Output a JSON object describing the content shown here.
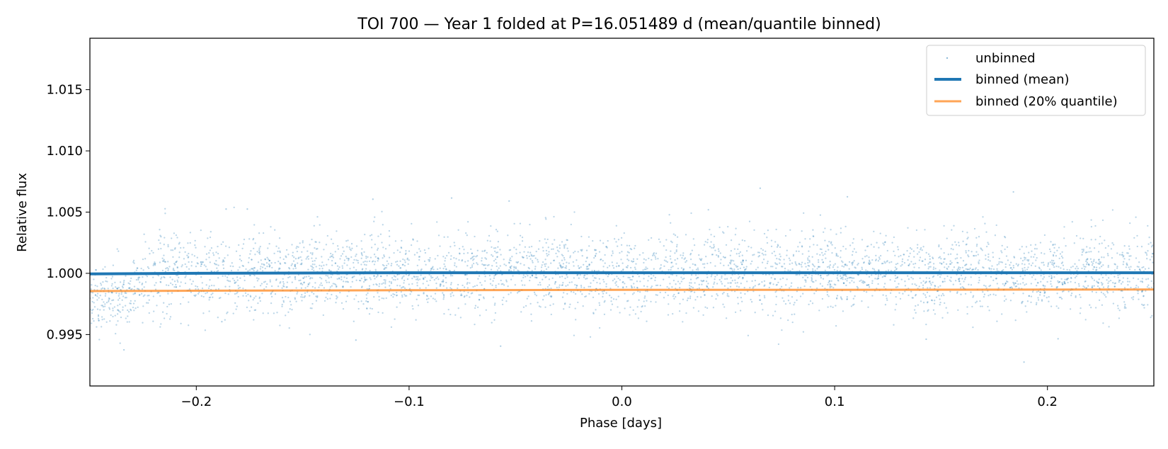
{
  "chart_data": {
    "type": "scatter",
    "title": "TOI 700 — Year 1 folded at P=16.051489 d (mean/quantile binned)",
    "xlabel": "Phase [days]",
    "ylabel": "Relative flux",
    "xlim": [
      -0.25,
      0.25
    ],
    "ylim": [
      0.9908,
      1.0192
    ],
    "xticks": [
      -0.2,
      -0.1,
      0.0,
      0.1,
      0.2
    ],
    "xtick_labels": [
      "−0.2",
      "−0.1",
      "0.0",
      "0.1",
      "0.2"
    ],
    "yticks": [
      0.995,
      1.0,
      1.005,
      1.01,
      1.015
    ],
    "ytick_labels": [
      "0.995",
      "1.000",
      "1.005",
      "1.010",
      "1.015"
    ],
    "grid": false,
    "legend_position": "top-right",
    "series": [
      {
        "name": "unbinned",
        "kind": "scatter",
        "color": "#1f77b4",
        "description_stats": {
          "center": 1.0,
          "scatter_sigma": 0.0016,
          "point_count_approx": 4000
        }
      },
      {
        "name": "binned (mean)",
        "kind": "line",
        "color": "#1f77b4",
        "x": [
          -0.25,
          -0.2,
          -0.1,
          0.0,
          0.1,
          0.2,
          0.25
        ],
        "y": [
          0.99995,
          1.0,
          1.00005,
          1.00005,
          1.00005,
          1.00005,
          1.00005
        ]
      },
      {
        "name": "binned (20% quantile)",
        "kind": "line",
        "color": "#ff7f0e",
        "x": [
          -0.25,
          -0.2,
          -0.1,
          0.0,
          0.1,
          0.2,
          0.25
        ],
        "y": [
          0.99855,
          0.99858,
          0.99862,
          0.99865,
          0.99865,
          0.99867,
          0.99868
        ]
      }
    ],
    "outliers": [
      {
        "x": -0.234,
        "y": 0.99375
      },
      {
        "x": -0.188,
        "y": 0.99605
      },
      {
        "x": -0.176,
        "y": 1.00525
      },
      {
        "x": -0.125,
        "y": 0.99455
      },
      {
        "x": -0.117,
        "y": 1.00605
      },
      {
        "x": -0.08,
        "y": 1.00615
      },
      {
        "x": -0.057,
        "y": 0.99405
      },
      {
        "x": -0.053,
        "y": 1.0059
      },
      {
        "x": 0.065,
        "y": 1.00695
      },
      {
        "x": 0.106,
        "y": 1.00625
      },
      {
        "x": 0.184,
        "y": 1.00665
      },
      {
        "x": 0.189,
        "y": 0.99275
      },
      {
        "x": 0.205,
        "y": 0.99465
      },
      {
        "x": -0.186,
        "y": 1.00525
      },
      {
        "x": 0.143,
        "y": 0.99462
      }
    ]
  }
}
